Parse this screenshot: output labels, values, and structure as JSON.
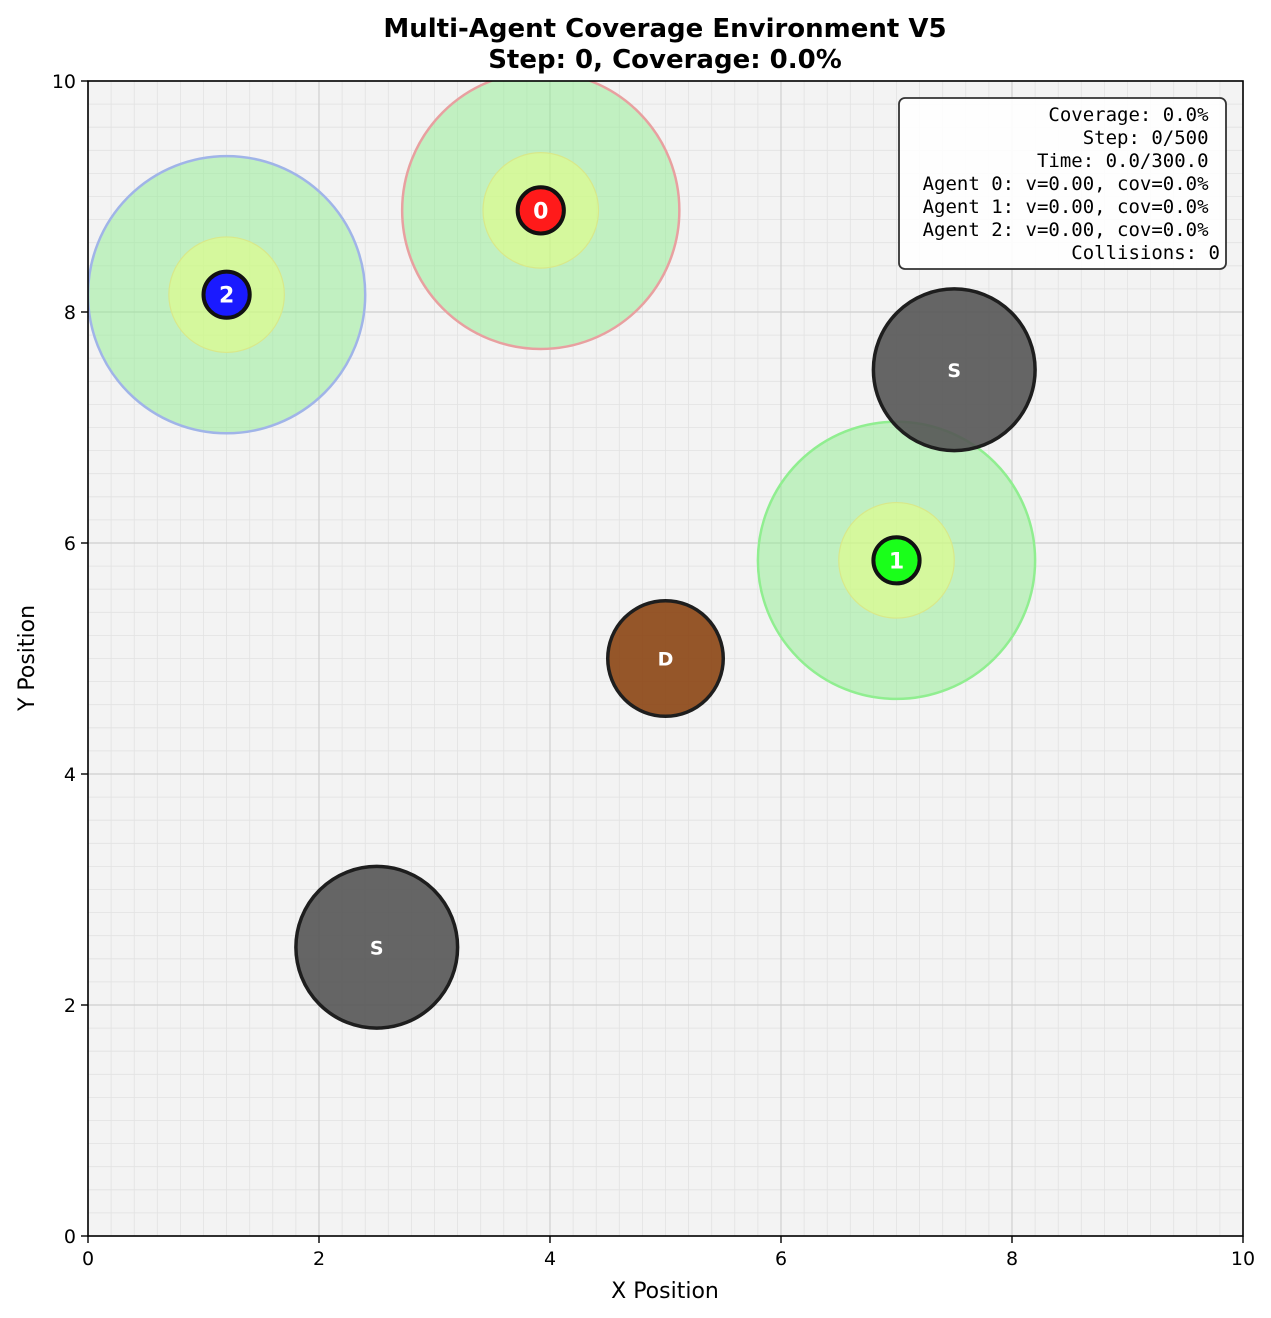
{
  "chart_data": {
    "type": "scatter",
    "title_line1": "Multi-Agent Coverage Environment V5",
    "title_line2": "Step: 0, Coverage: 0.0%",
    "xlabel": "X Position",
    "ylabel": "Y Position",
    "xlim": [
      0,
      10
    ],
    "ylim": [
      0,
      10
    ],
    "xticks": [
      0,
      2,
      4,
      6,
      8,
      10
    ],
    "yticks": [
      0,
      2,
      4,
      6,
      8,
      10
    ],
    "grid": true,
    "info_box": {
      "placement": "top-right",
      "lines": [
        "Coverage: 0.0%",
        "Step: 0/500",
        "Time: 0.0/300.0",
        "Agent 0: v=0.00, cov=0.0%",
        "Agent 1: v=0.00, cov=0.0%",
        "Agent 2: v=0.00, cov=0.0%",
        "Collisions: 0"
      ]
    },
    "agents": [
      {
        "label": "0",
        "x": 3.92,
        "y": 8.88,
        "sensor_radius": 1.2,
        "inner_radius": 0.5,
        "body_radius": 0.2,
        "color": "#ff1a1a",
        "sensor_edge": "#e8a0a0"
      },
      {
        "label": "1",
        "x": 7.0,
        "y": 5.85,
        "sensor_radius": 1.2,
        "inner_radius": 0.5,
        "body_radius": 0.2,
        "color": "#1aff1a",
        "sensor_edge": "#90ee90"
      },
      {
        "label": "2",
        "x": 1.2,
        "y": 8.15,
        "sensor_radius": 1.2,
        "inner_radius": 0.5,
        "body_radius": 0.2,
        "color": "#1a1aff",
        "sensor_edge": "#a0b4e8"
      }
    ],
    "obstacles": [
      {
        "label": "S",
        "x": 7.5,
        "y": 7.5,
        "radius": 0.7,
        "color": "#555555"
      },
      {
        "label": "D",
        "x": 5.0,
        "y": 5.0,
        "radius": 0.5,
        "color": "#8b4513"
      },
      {
        "label": "S",
        "x": 2.5,
        "y": 2.5,
        "radius": 0.7,
        "color": "#555555"
      }
    ],
    "colors": {
      "plot_bg": "#f3f3f3",
      "sensor_fill": "#90ee90",
      "inner_fill": "#e6ff80"
    }
  }
}
